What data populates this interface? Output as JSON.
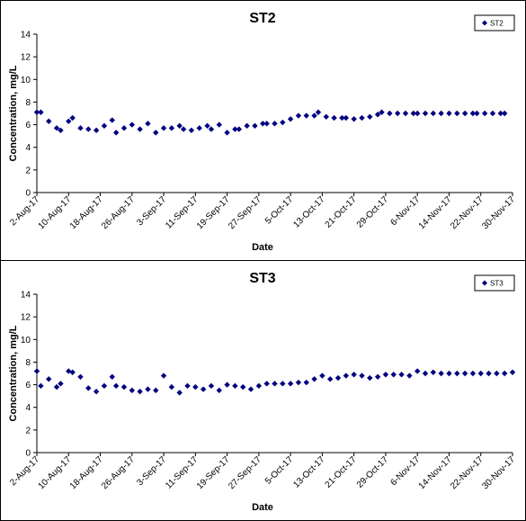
{
  "chart_data": [
    {
      "type": "scatter",
      "title": "ST2",
      "xlabel": "Date",
      "ylabel": "Concentration, mg/L",
      "ylim": [
        0,
        14
      ],
      "yticks": [
        "0",
        "2",
        "4",
        "6",
        "8",
        "10",
        "12",
        "14"
      ],
      "xticks": [
        "2-Aug-17",
        "10-Aug-17",
        "18-Aug-17",
        "26-Aug-17",
        "3-Sep-17",
        "11-Sep-17",
        "19-Sep-17",
        "27-Sep-17",
        "5-Oct-17",
        "13-Oct-17",
        "21-Oct-17",
        "29-Oct-17",
        "6-Nov-17",
        "14-Nov-17",
        "22-Nov-17",
        "30-Nov-17"
      ],
      "grid": false,
      "legend_position": "top-right",
      "series": [
        {
          "name": "ST2",
          "color": "#000080",
          "x": [
            "2-Aug-17",
            "3-Aug-17",
            "5-Aug-17",
            "7-Aug-17",
            "8-Aug-17",
            "10-Aug-17",
            "11-Aug-17",
            "13-Aug-17",
            "15-Aug-17",
            "17-Aug-17",
            "19-Aug-17",
            "21-Aug-17",
            "22-Aug-17",
            "24-Aug-17",
            "26-Aug-17",
            "28-Aug-17",
            "30-Aug-17",
            "1-Sep-17",
            "3-Sep-17",
            "5-Sep-17",
            "7-Sep-17",
            "8-Sep-17",
            "10-Sep-17",
            "12-Sep-17",
            "14-Sep-17",
            "15-Sep-17",
            "17-Sep-17",
            "19-Sep-17",
            "21-Sep-17",
            "22-Sep-17",
            "24-Sep-17",
            "26-Sep-17",
            "28-Sep-17",
            "29-Sep-17",
            "1-Oct-17",
            "3-Oct-17",
            "5-Oct-17",
            "7-Oct-17",
            "9-Oct-17",
            "11-Oct-17",
            "12-Oct-17",
            "14-Oct-17",
            "16-Oct-17",
            "18-Oct-17",
            "19-Oct-17",
            "21-Oct-17",
            "23-Oct-17",
            "25-Oct-17",
            "27-Oct-17",
            "28-Oct-17",
            "30-Oct-17",
            "1-Nov-17",
            "3-Nov-17",
            "5-Nov-17",
            "6-Nov-17",
            "8-Nov-17",
            "10-Nov-17",
            "12-Nov-17",
            "14-Nov-17",
            "16-Nov-17",
            "18-Nov-17",
            "20-Nov-17",
            "21-Nov-17",
            "23-Nov-17",
            "25-Nov-17",
            "27-Nov-17",
            "28-Nov-17"
          ],
          "y": [
            7.1,
            7.1,
            6.3,
            5.7,
            5.5,
            6.3,
            6.6,
            5.7,
            5.6,
            5.5,
            5.9,
            6.4,
            5.3,
            5.7,
            6.0,
            5.6,
            6.1,
            5.3,
            5.7,
            5.7,
            5.9,
            5.6,
            5.5,
            5.7,
            5.9,
            5.6,
            6.0,
            5.3,
            5.6,
            5.6,
            5.9,
            5.9,
            6.1,
            6.1,
            6.1,
            6.2,
            6.5,
            6.8,
            6.8,
            6.8,
            7.1,
            6.7,
            6.6,
            6.6,
            6.6,
            6.5,
            6.6,
            6.7,
            6.9,
            7.1,
            7.0,
            7.0,
            7.0,
            7.0,
            7.0,
            7.0,
            7.0,
            7.0,
            7.0,
            7.0,
            7.0,
            7.0,
            7.0,
            7.0,
            7.0,
            7.0,
            7.0
          ]
        }
      ]
    },
    {
      "type": "scatter",
      "title": "ST3",
      "xlabel": "Date",
      "ylabel": "Concentration, mg/L",
      "ylim": [
        0,
        14
      ],
      "yticks": [
        "0",
        "2",
        "4",
        "6",
        "8",
        "10",
        "12",
        "14"
      ],
      "xticks": [
        "2-Aug-17",
        "10-Aug-17",
        "18-Aug-17",
        "26-Aug-17",
        "3-Sep-17",
        "11-Sep-17",
        "19-Sep-17",
        "27-Sep-17",
        "5-Oct-17",
        "13-Oct-17",
        "21-Oct-17",
        "29-Oct-17",
        "6-Nov-17",
        "14-Nov-17",
        "22-Nov-17",
        "30-Nov-17"
      ],
      "grid": false,
      "legend_position": "top-right",
      "series": [
        {
          "name": "ST3",
          "color": "#000080",
          "x": [
            "2-Aug-17",
            "3-Aug-17",
            "5-Aug-17",
            "7-Aug-17",
            "8-Aug-17",
            "10-Aug-17",
            "11-Aug-17",
            "13-Aug-17",
            "15-Aug-17",
            "17-Aug-17",
            "19-Aug-17",
            "21-Aug-17",
            "22-Aug-17",
            "24-Aug-17",
            "26-Aug-17",
            "28-Aug-17",
            "30-Aug-17",
            "1-Sep-17",
            "3-Sep-17",
            "5-Sep-17",
            "7-Sep-17",
            "9-Sep-17",
            "11-Sep-17",
            "13-Sep-17",
            "15-Sep-17",
            "17-Sep-17",
            "19-Sep-17",
            "21-Sep-17",
            "23-Sep-17",
            "25-Sep-17",
            "27-Sep-17",
            "29-Sep-17",
            "1-Oct-17",
            "3-Oct-17",
            "5-Oct-17",
            "7-Oct-17",
            "9-Oct-17",
            "11-Oct-17",
            "13-Oct-17",
            "15-Oct-17",
            "17-Oct-17",
            "19-Oct-17",
            "21-Oct-17",
            "23-Oct-17",
            "25-Oct-17",
            "27-Oct-17",
            "29-Oct-17",
            "31-Oct-17",
            "2-Nov-17",
            "4-Nov-17",
            "6-Nov-17",
            "8-Nov-17",
            "10-Nov-17",
            "12-Nov-17",
            "14-Nov-17",
            "16-Nov-17",
            "18-Nov-17",
            "20-Nov-17",
            "22-Nov-17",
            "24-Nov-17",
            "26-Nov-17",
            "28-Nov-17",
            "30-Nov-17"
          ],
          "y": [
            7.2,
            5.9,
            6.5,
            5.8,
            6.1,
            7.2,
            7.1,
            6.7,
            5.7,
            5.4,
            5.9,
            6.7,
            5.9,
            5.8,
            5.5,
            5.4,
            5.6,
            5.5,
            6.8,
            5.8,
            5.3,
            5.9,
            5.8,
            5.6,
            5.9,
            5.5,
            6.0,
            5.9,
            5.8,
            5.6,
            5.9,
            6.1,
            6.1,
            6.1,
            6.1,
            6.2,
            6.2,
            6.5,
            6.8,
            6.5,
            6.6,
            6.8,
            6.9,
            6.8,
            6.6,
            6.7,
            6.9,
            6.9,
            6.9,
            6.8,
            7.2,
            7.0,
            7.1,
            7.0,
            7.0,
            7.0,
            7.0,
            7.0,
            7.0,
            7.0,
            7.0,
            7.0,
            7.1
          ]
        }
      ]
    }
  ]
}
